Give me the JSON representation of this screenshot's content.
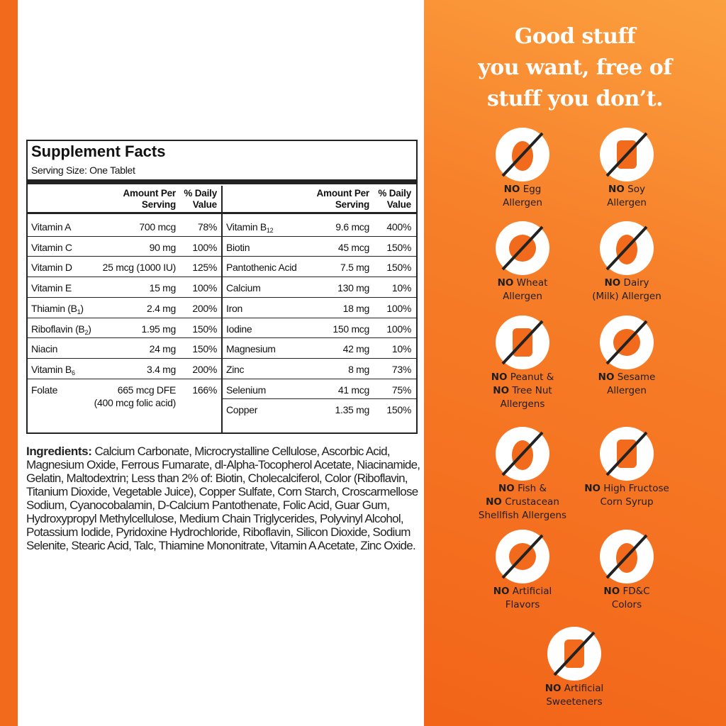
{
  "header": {
    "title_lines": [
      "Good stuff",
      "you want, free of",
      "stuff you don’t."
    ]
  },
  "supplement_facts": {
    "title": "Supplement Facts",
    "serving_size": "Serving Size: One Tablet",
    "columns": {
      "amount": [
        "Amount Per",
        "Serving"
      ],
      "daily_value": [
        "% Daily",
        "Value"
      ]
    },
    "left_rows": [
      {
        "name": "Vitamin A",
        "amount": "700 mcg",
        "dv": "78%"
      },
      {
        "name": "Vitamin C",
        "amount": "90 mg",
        "dv": "100%"
      },
      {
        "name": "Vitamin D",
        "amount": "25 mcg (1000 IU)",
        "dv": "125%"
      },
      {
        "name": "Vitamin E",
        "amount": "15 mg",
        "dv": "100%"
      },
      {
        "name": "Thiamin (B",
        "sub": "1",
        "after": ")",
        "amount": "2.4 mg",
        "dv": "200%"
      },
      {
        "name": "Riboflavin (B",
        "sub": "2",
        "after": ")",
        "amount": "1.95 mg",
        "dv": "150%"
      },
      {
        "name": "Niacin",
        "amount": "24 mg",
        "dv": "150%"
      },
      {
        "name": "Vitamin B",
        "sub": "6",
        "amount": "3.4 mg",
        "dv": "200%"
      },
      {
        "name": "Folate",
        "amount": "665 mcg DFE",
        "amount_note": "(400 mcg folic acid)",
        "dv": "166%"
      }
    ],
    "right_rows": [
      {
        "name": "Vitamin B",
        "sub": "12",
        "amount": "9.6 mcg",
        "dv": "400%"
      },
      {
        "name": "Biotin",
        "amount": "45 mcg",
        "dv": "150%"
      },
      {
        "name": "Pantothenic Acid",
        "amount": "7.5 mg",
        "dv": "150%"
      },
      {
        "name": "Calcium",
        "amount": "130 mg",
        "dv": "10%"
      },
      {
        "name": "Iron",
        "amount": "18 mg",
        "dv": "100%"
      },
      {
        "name": "Iodine",
        "amount": "150 mcg",
        "dv": "100%"
      },
      {
        "name": "Magnesium",
        "amount": "42 mg",
        "dv": "10%"
      },
      {
        "name": "Zinc",
        "amount": "8 mg",
        "dv": "73%"
      },
      {
        "name": "Selenium",
        "amount": "41 mcg",
        "dv": "75%"
      },
      {
        "name": "Copper",
        "amount": "1.35 mg",
        "dv": "150%"
      }
    ]
  },
  "ingredients": {
    "label": "Ingredients:",
    "text": "Calcium Carbonate, Microcrystalline Cellulose, Ascorbic Acid, Magnesium Oxide, Ferrous Fumarate, dl-Alpha-Tocopherol Acetate, Niacinamide, Gelatin, Maltodextrin; Less than 2% of: Biotin, Cholecalciferol, Color (Riboflavin, Titanium Dioxide, Vegetable Juice), Copper Sulfate, Corn Starch, Croscarmellose Sodium, Cyanocobalamin, D-Calcium Pantothenate, Folic Acid, Guar Gum, Hydroxypropyl Methylcellulose, Medium Chain Triglycerides, Polyvinyl Alcohol, Potassium Iodide, Pyridoxine Hydrochloride, Riboflavin, Silicon Dioxide, Sodium Selenite, Stearic Acid, Talc, Thiamine Mononitrate, Vitamin A Acetate, Zinc Oxide."
  },
  "badges": [
    {
      "lines": [
        {
          "no": "NO",
          "text": "Egg"
        },
        {
          "text": "Allergen"
        }
      ]
    },
    {
      "lines": [
        {
          "no": "NO",
          "text": "Soy"
        },
        {
          "text": "Allergen"
        }
      ]
    },
    {
      "lines": [
        {
          "no": "NO",
          "text": "Wheat"
        },
        {
          "text": "Allergen"
        }
      ]
    },
    {
      "lines": [
        {
          "no": "NO",
          "text": "Dairy"
        },
        {
          "text": "(Milk) Allergen"
        }
      ]
    },
    {
      "lines": [
        {
          "no": "NO",
          "text": "Peanut &"
        },
        {
          "no": "NO",
          "text": "Tree Nut"
        },
        {
          "text": "Allergens"
        }
      ]
    },
    {
      "lines": [
        {
          "no": "NO",
          "text": "Sesame"
        },
        {
          "text": "Allergen"
        }
      ]
    },
    {
      "lines": [
        {
          "no": "NO",
          "text": "Fish &"
        },
        {
          "no": "NO",
          "text": "Crustacean"
        },
        {
          "text": "Shellfish Allergens"
        }
      ]
    },
    {
      "lines": [
        {
          "no": "NO",
          "text": "High Fructose"
        },
        {
          "text": "Corn Syrup"
        }
      ]
    },
    {
      "lines": [
        {
          "no": "NO",
          "text": "Artificial"
        },
        {
          "text": "Flavors"
        }
      ]
    },
    {
      "lines": [
        {
          "no": "NO",
          "text": "FD&C"
        },
        {
          "text": "Colors"
        }
      ]
    },
    {
      "lines": [
        {
          "no": "NO",
          "text": "Artificial"
        },
        {
          "text": "Sweeteners"
        }
      ]
    }
  ]
}
